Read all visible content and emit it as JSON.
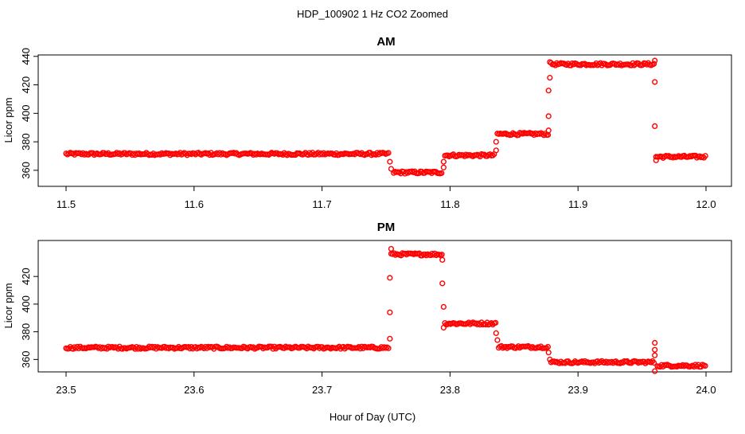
{
  "figure": {
    "title": "HDP_100902  1 Hz CO2 Zoomed",
    "xlabel": "Hour of Day (UTC)"
  },
  "chart_data": [
    {
      "type": "scatter",
      "title": "AM",
      "ylabel": "Licor ppm",
      "xlim": [
        11.5,
        12.0
      ],
      "ylim": [
        356,
        441
      ],
      "x_ticks": [
        11.5,
        11.6,
        11.7,
        11.8,
        11.9,
        12.0
      ],
      "x_tick_labels": [
        "11.5",
        "11.6",
        "11.7",
        "11.8",
        "11.9",
        "12.0"
      ],
      "y_ticks": [
        360,
        380,
        400,
        420,
        440
      ],
      "y_tick_labels": [
        "360",
        "380",
        "400",
        "420",
        "440"
      ],
      "marker_color": "#ff0000",
      "segments": [
        {
          "x_start": 11.5,
          "x_end": 11.752,
          "y": 371.5
        },
        {
          "x_start": 11.756,
          "x_end": 11.794,
          "y": 358.5
        },
        {
          "x_start": 11.796,
          "x_end": 11.835,
          "y": 370.5
        },
        {
          "x_start": 11.837,
          "x_end": 11.877,
          "y": 385.5
        },
        {
          "x_start": 11.879,
          "x_end": 11.96,
          "y": 434.5
        },
        {
          "x_start": 11.961,
          "x_end": 12.0,
          "y": 369.5
        }
      ],
      "transitions": [
        {
          "x": 11.753,
          "y": 366
        },
        {
          "x": 11.754,
          "y": 361
        },
        {
          "x": 11.795,
          "y": 362
        },
        {
          "x": 11.795,
          "y": 366
        },
        {
          "x": 11.836,
          "y": 374
        },
        {
          "x": 11.836,
          "y": 380
        },
        {
          "x": 11.877,
          "y": 388
        },
        {
          "x": 11.877,
          "y": 398
        },
        {
          "x": 11.877,
          "y": 416
        },
        {
          "x": 11.878,
          "y": 425
        },
        {
          "x": 11.878,
          "y": 436
        },
        {
          "x": 11.96,
          "y": 437
        },
        {
          "x": 11.96,
          "y": 422
        },
        {
          "x": 11.96,
          "y": 391
        },
        {
          "x": 11.961,
          "y": 367
        }
      ]
    },
    {
      "type": "scatter",
      "title": "PM",
      "ylabel": "Licor ppm",
      "xlim": [
        23.5,
        24.0
      ],
      "ylim": [
        351,
        446
      ],
      "x_ticks": [
        23.5,
        23.6,
        23.7,
        23.8,
        23.9,
        24.0
      ],
      "x_tick_labels": [
        "23.5",
        "23.6",
        "23.7",
        "23.8",
        "23.9",
        "24.0"
      ],
      "y_ticks": [
        360,
        380,
        400,
        420
      ],
      "y_tick_labels": [
        "360",
        "380",
        "400",
        "420"
      ],
      "marker_color": "#ff0000",
      "segments": [
        {
          "x_start": 23.5,
          "x_end": 23.752,
          "y": 368.5
        },
        {
          "x_start": 23.754,
          "x_end": 23.794,
          "y": 436
        },
        {
          "x_start": 23.796,
          "x_end": 23.836,
          "y": 386
        },
        {
          "x_start": 23.838,
          "x_end": 23.877,
          "y": 369
        },
        {
          "x_start": 23.879,
          "x_end": 23.96,
          "y": 358
        },
        {
          "x_start": 23.962,
          "x_end": 24.0,
          "y": 355.5
        }
      ],
      "transitions": [
        {
          "x": 23.753,
          "y": 375
        },
        {
          "x": 23.753,
          "y": 394
        },
        {
          "x": 23.753,
          "y": 419
        },
        {
          "x": 23.754,
          "y": 440
        },
        {
          "x": 23.794,
          "y": 432
        },
        {
          "x": 23.794,
          "y": 415
        },
        {
          "x": 23.795,
          "y": 398
        },
        {
          "x": 23.795,
          "y": 383
        },
        {
          "x": 23.836,
          "y": 379
        },
        {
          "x": 23.837,
          "y": 374
        },
        {
          "x": 23.877,
          "y": 365
        },
        {
          "x": 23.878,
          "y": 360
        },
        {
          "x": 23.96,
          "y": 372
        },
        {
          "x": 23.96,
          "y": 367
        },
        {
          "x": 23.96,
          "y": 363
        },
        {
          "x": 23.96,
          "y": 351.5
        }
      ]
    }
  ]
}
